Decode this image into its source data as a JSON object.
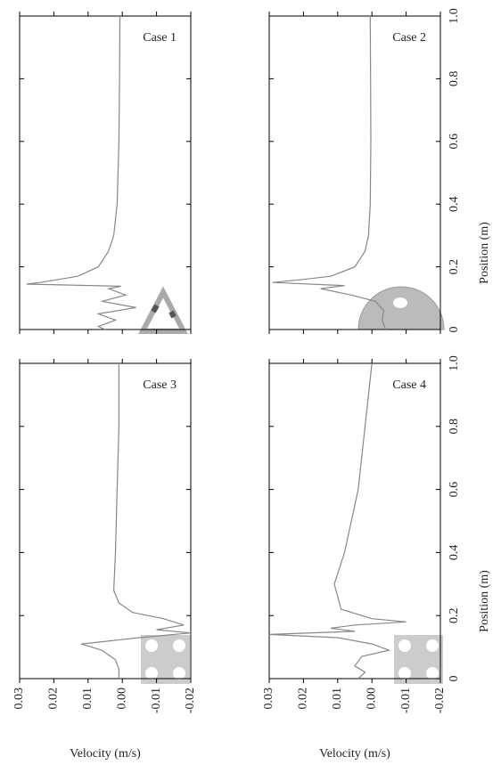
{
  "chart_data": [
    {
      "type": "line",
      "title": "Case 1",
      "x": [
        0,
        0.01,
        0.03,
        0.05,
        0.07,
        0.09,
        0.11,
        0.13,
        0.138,
        0.145,
        0.15,
        0.17,
        0.2,
        0.25,
        0.3,
        0.4,
        0.6,
        0.8,
        1.0
      ],
      "values": [
        0.005,
        0.007,
        0.002,
        0.007,
        -0.004,
        0.006,
        -0.001,
        0.004,
        0.0004,
        0.028,
        0.024,
        0.013,
        0.007,
        0.004,
        0.0025,
        0.0015,
        0.001,
        0.0008,
        0.0007
      ],
      "xlim": [
        0,
        1
      ],
      "xticks": [
        0,
        0.2,
        0.4,
        0.6,
        0.8,
        1
      ],
      "ylim": [
        0.03,
        -0.02
      ],
      "yticks": [
        0.03,
        0.02,
        0.01,
        0,
        -0.01,
        -0.02
      ]
    },
    {
      "type": "line",
      "title": "Case 2",
      "x": [
        0,
        0.03,
        0.06,
        0.09,
        0.11,
        0.13,
        0.14,
        0.15,
        0.16,
        0.17,
        0.2,
        0.25,
        0.3,
        0.4,
        0.6,
        0.8,
        1.0
      ],
      "values": [
        -0.004,
        -0.003,
        -0.0035,
        -0.001,
        0.006,
        0.015,
        0.008,
        0.029,
        0.02,
        0.012,
        0.005,
        0.002,
        0.001,
        0.0005,
        0.0003,
        0.0004,
        0.0005
      ],
      "xlim": [
        0,
        1
      ],
      "xticks": [
        0,
        {
          "value": 0.2,
          "label": "0.2"
        },
        {
          "value": 0.4,
          "label": "0.4"
        },
        {
          "value": 0.6,
          "label": "0.6"
        },
        {
          "value": 0.8,
          "label": "0.8"
        },
        {
          "value": 1,
          "label": "1.0"
        }
      ],
      "xlabel": "Position (m)",
      "ylim": [
        0.03,
        -0.02
      ],
      "yticks": [
        0.03,
        0.02,
        0.01,
        0,
        -0.01,
        -0.02
      ]
    },
    {
      "type": "line",
      "title": "Case 3",
      "x": [
        0,
        0.03,
        0.06,
        0.09,
        0.11,
        0.13,
        0.145,
        0.155,
        0.17,
        0.19,
        0.21,
        0.24,
        0.28,
        0.4,
        0.6,
        0.8,
        1.0
      ],
      "values": [
        0.001,
        0.001,
        0.002,
        0.006,
        0.012,
        -0.005,
        -0.02,
        -0.01,
        -0.018,
        -0.012,
        -0.003,
        0.001,
        0.0025,
        0.002,
        0.0015,
        0.001,
        0.001
      ],
      "xlim": [
        0,
        1
      ],
      "xticks": [
        0,
        0.2,
        0.4,
        0.6,
        0.8,
        1
      ],
      "ylim": [
        0.03,
        -0.02
      ],
      "yticks": [
        0.03,
        0.02,
        0.01,
        {
          "value": 0,
          "label": "0.00"
        },
        -0.01,
        -0.02
      ],
      "ylabel": "Velocity (m/s)"
    },
    {
      "type": "line",
      "title": "Case 4",
      "x": [
        0,
        0.02,
        0.04,
        0.07,
        0.09,
        0.11,
        0.13,
        0.14,
        0.15,
        0.16,
        0.17,
        0.18,
        0.19,
        0.22,
        0.26,
        0.3,
        0.4,
        0.6,
        0.8,
        1.0
      ],
      "values": [
        0.004,
        0.002,
        0.005,
        0.003,
        -0.005,
        0.0,
        0.01,
        0.03,
        0.005,
        0.012,
        0.005,
        -0.01,
        0.0,
        0.009,
        0.01,
        0.011,
        0.008,
        0.004,
        0.002,
        0.0
      ],
      "xlim": [
        0,
        1
      ],
      "xticks": [
        0,
        {
          "value": 0.2,
          "label": "0.2"
        },
        {
          "value": 0.4,
          "label": "0.4"
        },
        {
          "value": 0.6,
          "label": "0.6"
        },
        {
          "value": 0.8,
          "label": "0.8"
        },
        {
          "value": 1,
          "label": "1.0"
        }
      ],
      "xlabel": "Position (m)",
      "ylim": [
        0.03,
        -0.02
      ],
      "yticks": [
        0.03,
        0.02,
        0.01,
        {
          "value": 0,
          "label": "0.00"
        },
        -0.01,
        -0.02
      ],
      "ylabel": "Velocity (m/s)"
    }
  ]
}
